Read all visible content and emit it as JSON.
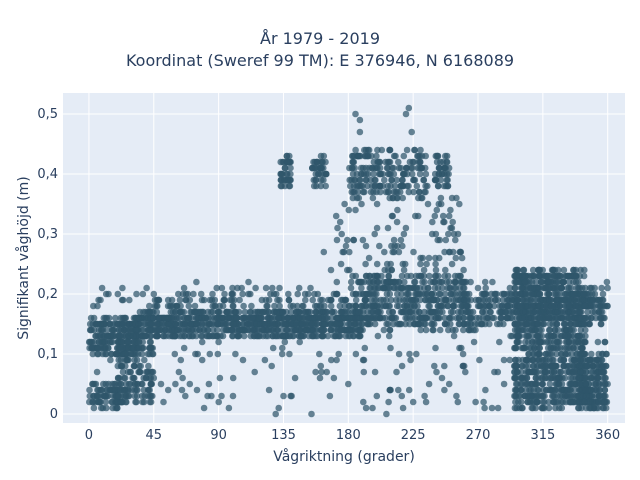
{
  "chart_data": {
    "type": "scatter",
    "title_line1": "År 1979 - 2019",
    "title_line2": "Koordinat (Sweref 99 TM): E 376946, N 6168089",
    "xlabel": "Vågriktning (grader)",
    "ylabel": "Signifikant våghöjd (m)",
    "xlim": [
      -18,
      372
    ],
    "ylim": [
      -0.015,
      0.535
    ],
    "xticks": [
      0,
      45,
      90,
      135,
      180,
      225,
      270,
      315,
      360
    ],
    "xtick_labels": [
      "0",
      "45",
      "90",
      "135",
      "180",
      "225",
      "270",
      "315",
      "360"
    ],
    "yticks": [
      0,
      0.1,
      0.2,
      0.3,
      0.4,
      0.5
    ],
    "ytick_labels": [
      "0",
      "0,1",
      "0,2",
      "0,3",
      "0,4",
      "0,5"
    ],
    "grid": true,
    "colors": {
      "marker": "#2f566b",
      "background": "#e5ecf6",
      "grid": "#ffffff",
      "text": "#2a3f5f"
    },
    "clusters": [
      {
        "x": [
          0,
          28
        ],
        "y": [
          0.01,
          0.05
        ],
        "n": 90
      },
      {
        "x": [
          0,
          35
        ],
        "y": [
          0.1,
          0.16
        ],
        "n": 200
      },
      {
        "x": [
          20,
          45
        ],
        "y": [
          0.02,
          0.14
        ],
        "n": 150
      },
      {
        "x": [
          30,
          190
        ],
        "y": [
          0.13,
          0.17
        ],
        "n": 700
      },
      {
        "x": [
          40,
          270
        ],
        "y": [
          0.14,
          0.2
        ],
        "n": 300
      },
      {
        "x": [
          185,
          265
        ],
        "y": [
          0.15,
          0.23
        ],
        "n": 300
      },
      {
        "x": [
          180,
          235
        ],
        "y": [
          0.36,
          0.44
        ],
        "n": 200
      },
      {
        "x": [
          133,
          140
        ],
        "y": [
          0.38,
          0.43
        ],
        "n": 40
      },
      {
        "x": [
          155,
          165
        ],
        "y": [
          0.38,
          0.43
        ],
        "n": 40
      },
      {
        "x": [
          240,
          250
        ],
        "y": [
          0.38,
          0.43
        ],
        "n": 40
      },
      {
        "x": [
          270,
          360
        ],
        "y": [
          0.15,
          0.21
        ],
        "n": 300
      },
      {
        "x": [
          295,
          345
        ],
        "y": [
          0.01,
          0.24
        ],
        "n": 900
      },
      {
        "x": [
          340,
          360
        ],
        "y": [
          0.01,
          0.1
        ],
        "n": 200
      },
      {
        "x": [
          170,
          260
        ],
        "y": [
          0.2,
          0.36
        ],
        "n": 120
      },
      {
        "x": [
          5,
          360
        ],
        "y": [
          0.0,
          0.22
        ],
        "n": 250
      }
    ],
    "points": [
      [
        185,
        0.5
      ],
      [
        188,
        0.49
      ],
      [
        222,
        0.51
      ],
      [
        220,
        0.5
      ],
      [
        224,
        0.47
      ],
      [
        188,
        0.47
      ],
      [
        218,
        0.01
      ],
      [
        225,
        0.02
      ],
      [
        234,
        0.02
      ],
      [
        256,
        0.02
      ],
      [
        310,
        0.01
      ],
      [
        340,
        0.01
      ],
      [
        245,
        0.06
      ],
      [
        250,
        0.05
      ],
      [
        255,
        0.03
      ],
      [
        180,
        0.05
      ],
      [
        170,
        0.06
      ],
      [
        165,
        0.07
      ],
      [
        140,
        0.03
      ],
      [
        135,
        0.03
      ],
      [
        125,
        0.04
      ],
      [
        115,
        0.07
      ],
      [
        100,
        0.03
      ],
      [
        92,
        0.03
      ],
      [
        85,
        0.03
      ],
      [
        75,
        0.04
      ],
      [
        70,
        0.05
      ],
      [
        65,
        0.06
      ],
      [
        60,
        0.05
      ],
      [
        55,
        0.04
      ],
      [
        50,
        0.05
      ],
      [
        45,
        0.06
      ],
      [
        43,
        0.07
      ],
      [
        90,
        0.12
      ],
      [
        100,
        0.2
      ],
      [
        120,
        0.19
      ],
      [
        130,
        0.2
      ],
      [
        150,
        0.2
      ],
      [
        170,
        0.2
      ],
      [
        175,
        0.25
      ],
      [
        163,
        0.27
      ],
      [
        168,
        0.24
      ],
      [
        172,
        0.22
      ],
      [
        178,
        0.19
      ],
      [
        183,
        0.23
      ],
      [
        185,
        0.34
      ],
      [
        186,
        0.36
      ],
      [
        200,
        0.31
      ],
      [
        205,
        0.27
      ],
      [
        210,
        0.24
      ],
      [
        214,
        0.28
      ],
      [
        230,
        0.25
      ],
      [
        236,
        0.26
      ],
      [
        246,
        0.32
      ],
      [
        250,
        0.33
      ],
      [
        255,
        0.36
      ],
      [
        257,
        0.35
      ],
      [
        260,
        0.24
      ],
      [
        262,
        0.18
      ],
      [
        265,
        0.16
      ],
      [
        268,
        0.15
      ],
      [
        270,
        0.21
      ],
      [
        275,
        0.22
      ],
      [
        280,
        0.22
      ],
      [
        285,
        0.18
      ],
      [
        290,
        0.16
      ],
      [
        350,
        0.19
      ],
      [
        354,
        0.19
      ],
      [
        357,
        0.16
      ],
      [
        358,
        0.12
      ],
      [
        359,
        0.1
      ],
      [
        3,
        0.18
      ],
      [
        8,
        0.19
      ],
      [
        12,
        0.2
      ],
      [
        20,
        0.2
      ],
      [
        28,
        0.19
      ],
      [
        33,
        0.2
      ],
      [
        40,
        0.21
      ],
      [
        45,
        0.2
      ],
      [
        48,
        0.19
      ],
      [
        55,
        0.19
      ],
      [
        62,
        0.2
      ],
      [
        70,
        0.19
      ],
      [
        80,
        0.19
      ],
      [
        103,
        0.21
      ],
      [
        106,
        0.21
      ],
      [
        112,
        0.2
      ],
      [
        125,
        0.19
      ],
      [
        140,
        0.18
      ],
      [
        157,
        0.18
      ]
    ]
  }
}
